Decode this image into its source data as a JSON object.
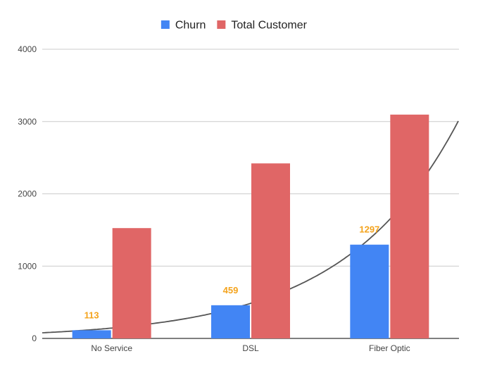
{
  "chart_data": {
    "type": "bar",
    "categories": [
      "No Service",
      "DSL",
      "Fiber Optic"
    ],
    "series": [
      {
        "name": "Churn",
        "values": [
          113,
          459,
          1297
        ],
        "color": "#4285f4"
      },
      {
        "name": "Total Customer",
        "values": [
          1526,
          2421,
          3096
        ],
        "color": "#e06666"
      }
    ],
    "data_labels": {
      "series": "Churn",
      "values": [
        "113",
        "459",
        "1297"
      ],
      "color": "#f4a31c"
    },
    "trendline": {
      "type": "exponential",
      "based_on": "Churn",
      "color": "#555555"
    },
    "ylim": [
      0,
      4000
    ],
    "yticks": [
      "0",
      "1000",
      "2000",
      "3000",
      "4000"
    ],
    "grid": true,
    "legend_position": "top",
    "title": "",
    "xlabel": "",
    "ylabel": ""
  }
}
